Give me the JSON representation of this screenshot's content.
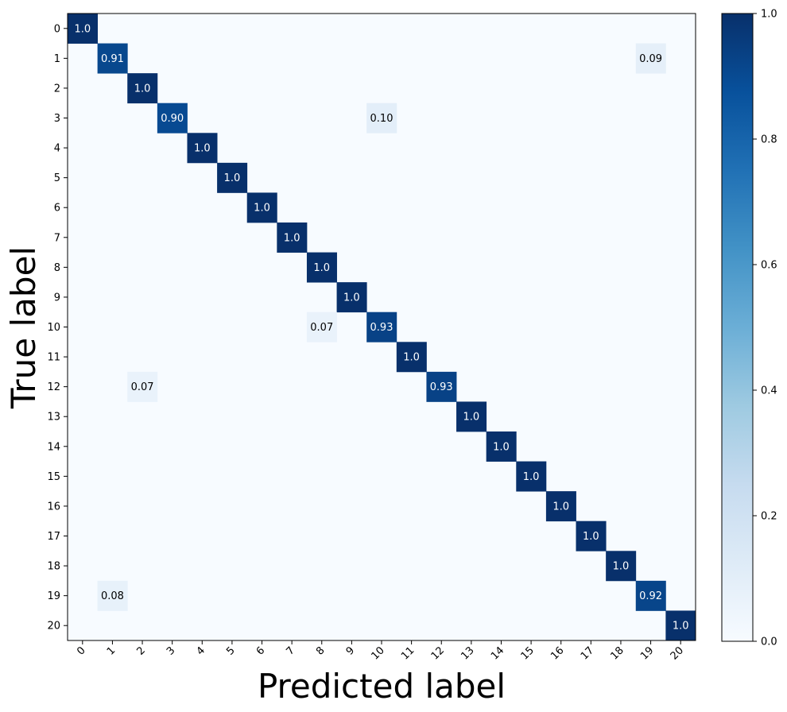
{
  "chart_data": {
    "type": "heatmap",
    "title": "",
    "xlabel": "Predicted label",
    "ylabel": "True label",
    "x_categories": [
      "0",
      "1",
      "2",
      "3",
      "4",
      "5",
      "6",
      "7",
      "8",
      "9",
      "10",
      "11",
      "12",
      "13",
      "14",
      "15",
      "16",
      "17",
      "18",
      "19",
      "20"
    ],
    "y_categories": [
      "0",
      "1",
      "2",
      "3",
      "4",
      "5",
      "6",
      "7",
      "8",
      "9",
      "10",
      "11",
      "12",
      "13",
      "14",
      "15",
      "16",
      "17",
      "18",
      "19",
      "20"
    ],
    "colormap": "Blues",
    "vmin": 0.0,
    "vmax": 1.0,
    "colorbar_ticks": [
      "0.0",
      "0.2",
      "0.4",
      "0.6",
      "0.8",
      "1.0"
    ],
    "colorbar_tick_values": [
      0.0,
      0.2,
      0.4,
      0.6,
      0.8,
      1.0
    ],
    "cells": [
      {
        "row": 0,
        "col": 0,
        "value": 1.0,
        "label": "1.0"
      },
      {
        "row": 1,
        "col": 1,
        "value": 0.91,
        "label": "0.91"
      },
      {
        "row": 1,
        "col": 19,
        "value": 0.09,
        "label": "0.09"
      },
      {
        "row": 2,
        "col": 2,
        "value": 1.0,
        "label": "1.0"
      },
      {
        "row": 3,
        "col": 3,
        "value": 0.9,
        "label": "0.90"
      },
      {
        "row": 3,
        "col": 10,
        "value": 0.1,
        "label": "0.10"
      },
      {
        "row": 4,
        "col": 4,
        "value": 1.0,
        "label": "1.0"
      },
      {
        "row": 5,
        "col": 5,
        "value": 1.0,
        "label": "1.0"
      },
      {
        "row": 6,
        "col": 6,
        "value": 1.0,
        "label": "1.0"
      },
      {
        "row": 7,
        "col": 7,
        "value": 1.0,
        "label": "1.0"
      },
      {
        "row": 8,
        "col": 8,
        "value": 1.0,
        "label": "1.0"
      },
      {
        "row": 9,
        "col": 9,
        "value": 1.0,
        "label": "1.0"
      },
      {
        "row": 10,
        "col": 8,
        "value": 0.07,
        "label": "0.07"
      },
      {
        "row": 10,
        "col": 10,
        "value": 0.93,
        "label": "0.93"
      },
      {
        "row": 11,
        "col": 11,
        "value": 1.0,
        "label": "1.0"
      },
      {
        "row": 12,
        "col": 2,
        "value": 0.07,
        "label": "0.07"
      },
      {
        "row": 12,
        "col": 12,
        "value": 0.93,
        "label": "0.93"
      },
      {
        "row": 13,
        "col": 13,
        "value": 1.0,
        "label": "1.0"
      },
      {
        "row": 14,
        "col": 14,
        "value": 1.0,
        "label": "1.0"
      },
      {
        "row": 15,
        "col": 15,
        "value": 1.0,
        "label": "1.0"
      },
      {
        "row": 16,
        "col": 16,
        "value": 1.0,
        "label": "1.0"
      },
      {
        "row": 17,
        "col": 17,
        "value": 1.0,
        "label": "1.0"
      },
      {
        "row": 18,
        "col": 18,
        "value": 1.0,
        "label": "1.0"
      },
      {
        "row": 19,
        "col": 1,
        "value": 0.08,
        "label": "0.08"
      },
      {
        "row": 19,
        "col": 19,
        "value": 0.92,
        "label": "0.92"
      },
      {
        "row": 20,
        "col": 20,
        "value": 1.0,
        "label": "1.0"
      }
    ],
    "grid": false,
    "legend": "colorbar-right"
  }
}
